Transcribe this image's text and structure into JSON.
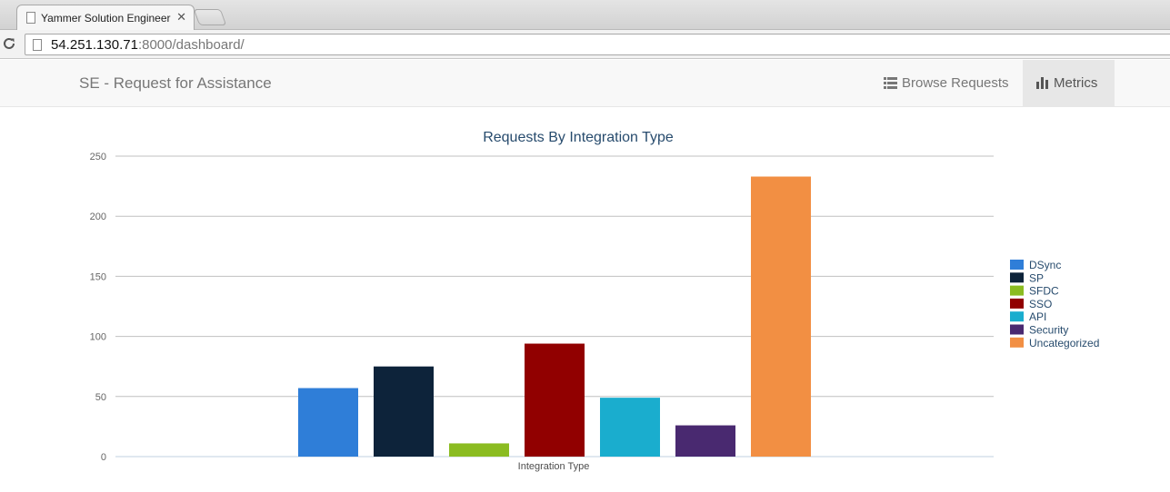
{
  "browser": {
    "tab_title": "Yammer Solution Engineer",
    "url_host": "54.251.130.71",
    "url_rest": ":8000/dashboard/"
  },
  "navbar": {
    "brand": "SE - Request for Assistance",
    "browse_label": "Browse Requests",
    "browse_icon": "list-icon",
    "metrics_label": "Metrics",
    "metrics_icon": "bar-chart-icon",
    "active": "Metrics"
  },
  "chart_data": {
    "type": "bar",
    "title": "Requests By Integration Type",
    "xlabel": "Integration Type",
    "ylabel": "",
    "ylim": [
      0,
      250
    ],
    "yticks": [
      0,
      50,
      100,
      150,
      200,
      250
    ],
    "grid": true,
    "legend_position": "right",
    "series": [
      {
        "name": "DSync",
        "value": 57,
        "color": "#2f7ed8"
      },
      {
        "name": "SP",
        "value": 75,
        "color": "#0d233a"
      },
      {
        "name": "SFDC",
        "value": 11,
        "color": "#8bbc21"
      },
      {
        "name": "SSO",
        "value": 94,
        "color": "#910000"
      },
      {
        "name": "API",
        "value": 49,
        "color": "#1aadce"
      },
      {
        "name": "Security",
        "value": 26,
        "color": "#492970"
      },
      {
        "name": "Uncategorized",
        "value": 233,
        "color": "#f28f43"
      }
    ]
  }
}
